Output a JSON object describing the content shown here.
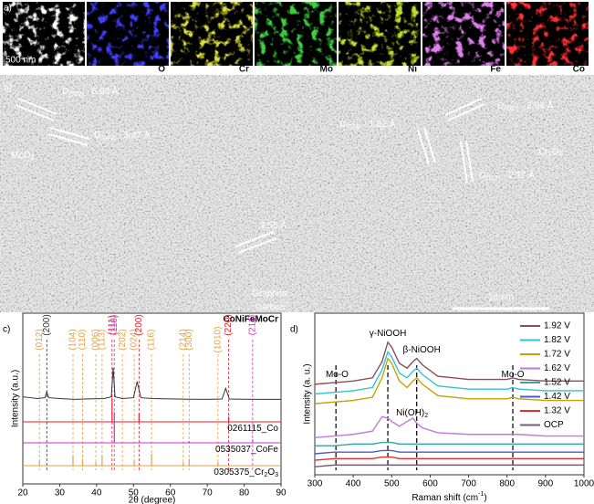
{
  "panel_a": {
    "label": "a)",
    "scale_bar": "500 nm",
    "maps": [
      "O",
      "Cr",
      "Mo",
      "Ni",
      "Fe",
      "Co"
    ]
  },
  "panel_b": {
    "label": "b)",
    "annotations": [
      [
        {
          "text": "D"
        },
        {
          "text": "(020)",
          "sub": true
        },
        {
          "text": " - 6.94 Å"
        }
      ],
      [
        {
          "text": "D"
        },
        {
          "text": "(040)",
          "sub": true
        },
        {
          "text": " - 3.47 Å"
        }
      ],
      [
        {
          "text": "MoO"
        },
        {
          "text": "3",
          "sub": true
        }
      ],
      [
        {
          "text": "D"
        },
        {
          "text": "(024)",
          "sub": true
        },
        {
          "text": " - 1.82 Å"
        }
      ],
      [
        {
          "text": "D"
        },
        {
          "text": "(202)",
          "sub": true
        },
        {
          "text": " - 2.04 Å"
        }
      ],
      [
        {
          "text": "D"
        },
        {
          "text": "(113)",
          "sub": true
        },
        {
          "text": " - 2.17 Å"
        }
      ],
      [
        {
          "text": "Cr"
        },
        {
          "text": "2",
          "sub": true
        },
        {
          "text": "O"
        },
        {
          "text": "3",
          "sub": true
        }
      ],
      [
        {
          "text": "3.55 Å"
        }
      ]
    ],
    "carbon": [
      "Graphitic",
      "Carbon"
    ],
    "scale_bar": "10 nm"
  },
  "chart_data": [
    {
      "type": "xrd",
      "panel_label": "c)",
      "title": "CoNiFeMoCr",
      "xlabel": "2θ (degree)",
      "ylabel": "Intensity (a.u.)",
      "xlim": [
        20,
        90
      ],
      "xticks": [
        20,
        30,
        40,
        50,
        60,
        70,
        80,
        90
      ],
      "ylim": [
        0,
        100
      ],
      "series": [
        {
          "color": "#333333",
          "x": [
            20,
            22,
            24,
            26,
            26.5,
            27,
            30,
            34,
            38,
            42,
            44,
            44.5,
            45,
            47,
            50,
            51,
            52,
            55,
            60,
            65,
            70,
            74,
            75,
            76,
            80,
            85,
            90
          ],
          "values": [
            51,
            50.5,
            50,
            50.5,
            54,
            50.5,
            50,
            49.5,
            49.8,
            50,
            51,
            68,
            51,
            50,
            50.5,
            60,
            50.5,
            50,
            49.8,
            49.6,
            49.5,
            49.7,
            56,
            49.7,
            49.6,
            49.5,
            49.5
          ]
        }
      ],
      "references": [
        {
          "name": [
            {
              "text": "0261115_Co"
            }
          ],
          "color": "#e0202a",
          "x": [
            44.2,
            51.5,
            75.8
          ],
          "values": [
            14,
            5,
            3
          ]
        },
        {
          "name": [
            {
              "text": "0535037_CoFe"
            }
          ],
          "color": "#d030d0",
          "x": [
            44.8,
            65.0,
            82.3
          ],
          "values": [
            18,
            1,
            2
          ]
        },
        {
          "name": [
            {
              "text": "0305375_Cr"
            },
            {
              "text": "2",
              "sub": true
            },
            {
              "text": "O"
            },
            {
              "text": "3",
              "sub": true
            }
          ],
          "color": "#e8a040",
          "x": [
            24.5,
            33.6,
            36.2,
            39.8,
            41.5,
            50.2,
            54.9,
            63.5,
            65.1,
            72.9
          ],
          "values": [
            3,
            6,
            4,
            2,
            6,
            3,
            7,
            2,
            4,
            2
          ]
        }
      ],
      "peak_labels": [
        {
          "x": 24.5,
          "label": "(012)",
          "color": "#e8a040"
        },
        {
          "x": 26.5,
          "label": "(200)",
          "color": "#333333"
        },
        {
          "x": 33.6,
          "label": "(104)",
          "color": "#e8a040"
        },
        {
          "x": 36.2,
          "label": "(110)",
          "color": "#e8a040"
        },
        {
          "x": 39.8,
          "label": "(006)",
          "color": "#e8a040"
        },
        {
          "x": 41.5,
          "label": "(113)",
          "color": "#e8a040"
        },
        {
          "x": 44.2,
          "label": "(111)",
          "color": "#e0202a"
        },
        {
          "x": 44.8,
          "label": "(110)",
          "color": "#d030d0"
        },
        {
          "x": 47.0,
          "label": "(202)",
          "color": "#e8a040"
        },
        {
          "x": 50.2,
          "label": "(024)",
          "color": "#e8a040"
        },
        {
          "x": 51.5,
          "label": "(200)",
          "color": "#e0202a"
        },
        {
          "x": 54.9,
          "label": "(116)",
          "color": "#e8a040"
        },
        {
          "x": 63.5,
          "label": "(214)",
          "color": "#e8a040"
        },
        {
          "x": 65.1,
          "label": "(300)",
          "color": "#e8a040"
        },
        {
          "x": 72.9,
          "label": "(1010)",
          "color": "#e8a040"
        },
        {
          "x": 75.8,
          "label": "(220)",
          "color": "#e0202a"
        },
        {
          "x": 82.3,
          "label": "(211)",
          "color": "#d030d0"
        }
      ]
    },
    {
      "type": "raman",
      "panel_label": "d)",
      "xlabel": [
        {
          "text": "Raman shift (cm"
        },
        {
          "text": "-1",
          "sup": true
        },
        {
          "text": ")"
        }
      ],
      "ylabel": "Intensity (a. u.)",
      "xlim": [
        300,
        1000
      ],
      "xticks": [
        300,
        400,
        500,
        600,
        700,
        800,
        900,
        1000
      ],
      "ylim": [
        0,
        10
      ],
      "bands": [
        355,
        490,
        565,
        815
      ],
      "annotations": [
        [
          {
            "text": "Mo-O"
          }
        ],
        [
          {
            "text": "γ-NiOOH"
          }
        ],
        [
          {
            "text": "β-NiOOH"
          }
        ],
        [
          {
            "text": "Ni(OH)"
          },
          {
            "text": "2",
            "sub": true
          }
        ],
        [
          {
            "text": "Mo-O"
          }
        ]
      ],
      "x": [
        300,
        350,
        400,
        450,
        475,
        490,
        500,
        520,
        540,
        555,
        565,
        580,
        620,
        700,
        800,
        815,
        830,
        900,
        1000
      ],
      "series": [
        {
          "name": "1.92 V",
          "color": "#8b4c5c",
          "values": [
            5.6,
            5.7,
            5.8,
            6.0,
            7.0,
            8.2,
            7.9,
            6.9,
            6.6,
            7.0,
            7.2,
            6.8,
            6.1,
            5.9,
            5.9,
            6.0,
            5.9,
            5.8,
            5.8
          ]
        },
        {
          "name": "1.82 V",
          "color": "#2ec4d6",
          "values": [
            5.0,
            5.1,
            5.2,
            5.4,
            6.5,
            7.6,
            7.3,
            6.3,
            6.0,
            6.4,
            6.6,
            6.2,
            5.5,
            5.3,
            5.3,
            5.4,
            5.3,
            5.2,
            5.2
          ]
        },
        {
          "name": "1.72 V",
          "color": "#c8a000",
          "values": [
            4.4,
            4.5,
            4.6,
            4.8,
            6.0,
            7.2,
            6.9,
            5.8,
            5.4,
            5.8,
            6.0,
            5.6,
            4.9,
            4.7,
            4.7,
            4.8,
            4.7,
            4.6,
            4.6
          ]
        },
        {
          "name": "1.62 V",
          "color": "#c07ad8",
          "values": [
            2.3,
            2.4,
            2.5,
            2.7,
            3.6,
            3.5,
            3.3,
            3.0,
            3.3,
            3.5,
            3.2,
            2.9,
            2.6,
            2.5,
            2.5,
            2.5,
            2.5,
            2.4,
            2.4
          ]
        },
        {
          "name": "1.52 V",
          "color": "#3aa59a",
          "values": [
            1.8,
            1.8,
            1.9,
            1.9,
            2.0,
            2.0,
            2.0,
            1.9,
            1.9,
            1.9,
            1.9,
            1.9,
            1.9,
            1.9,
            1.9,
            1.9,
            1.9,
            1.9,
            1.9
          ]
        },
        {
          "name": "1.42 V",
          "color": "#4a5fc0",
          "values": [
            1.3,
            1.4,
            1.4,
            1.4,
            1.5,
            1.5,
            1.5,
            1.4,
            1.4,
            1.4,
            1.4,
            1.4,
            1.4,
            1.4,
            1.4,
            1.4,
            1.4,
            1.4,
            1.4
          ]
        },
        {
          "name": "1.32 V",
          "color": "#e03030",
          "values": [
            0.9,
            1.0,
            1.0,
            1.0,
            1.1,
            1.1,
            1.1,
            1.0,
            1.0,
            1.0,
            1.0,
            1.0,
            1.0,
            1.0,
            1.0,
            1.0,
            1.0,
            1.0,
            1.0
          ]
        },
        {
          "name": "OCP",
          "color": "#7a5a7a",
          "values": [
            0.5,
            0.6,
            0.6,
            0.6,
            0.6,
            0.6,
            0.6,
            0.6,
            0.6,
            0.6,
            0.6,
            0.6,
            0.6,
            0.6,
            0.6,
            0.6,
            0.6,
            0.6,
            0.6
          ]
        }
      ]
    }
  ]
}
